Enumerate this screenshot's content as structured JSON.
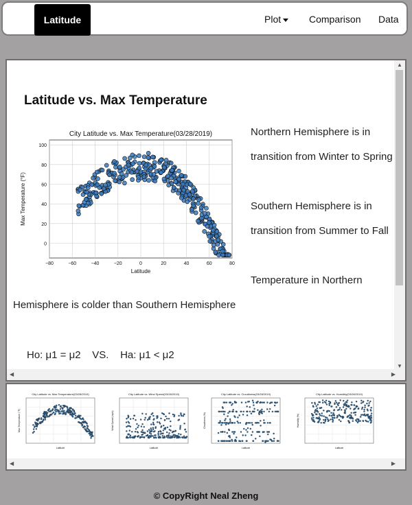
{
  "nav": {
    "brand": "Latitude",
    "plot": "Plot",
    "comparison": "Comparison",
    "data": "Data"
  },
  "main": {
    "heading": "Latitude vs. Max Temperature",
    "para1_line1": "Northern Hemisphere is in",
    "para1_line2": "transition from Winter to Spring",
    "para2_line1": "Southern Hemisphere is in",
    "para2_line2": "transition from Summer to Fall",
    "para3_line1": "Temperature in Northern",
    "para3_line2": "Hemisphere is colder than Southern Hemisphere",
    "hypothesis": "Ho: μ1 = μ2    VS.    Ha: μ1 < μ2"
  },
  "chart_data": {
    "type": "scatter",
    "title": "City Latitude vs. Max Temperature(03/28/2019)",
    "xlabel": "Latitude",
    "ylabel": "Max Temperature (°F)",
    "xlim": [
      -80,
      80
    ],
    "ylim": [
      -15,
      105
    ],
    "xticks": [
      -80,
      -60,
      -40,
      -20,
      0,
      20,
      40,
      60,
      80
    ],
    "yticks": [
      0,
      20,
      40,
      60,
      80,
      100
    ],
    "grid": true,
    "color": "#3b7bbf"
  },
  "thumbnails": [
    {
      "title": "City Latitude vs. Max Temperature(03/28/2019)",
      "xlabel": "Latitude",
      "ylabel": "Max Temperature (°F)"
    },
    {
      "title": "City Latitude vs. Wind Speed(03/28/2019)",
      "xlabel": "Latitude",
      "ylabel": "Wind Speed (mph)"
    },
    {
      "title": "City Latitude vs. Cloudiness(03/28/2019)",
      "xlabel": "Latitude",
      "ylabel": "Cloudiness (%)"
    },
    {
      "title": "City Latitude vs. Humidity(03/28/2019)",
      "xlabel": "Latitude",
      "ylabel": "Humidity (%)"
    }
  ],
  "footer": "© CopyRight Neal Zheng"
}
